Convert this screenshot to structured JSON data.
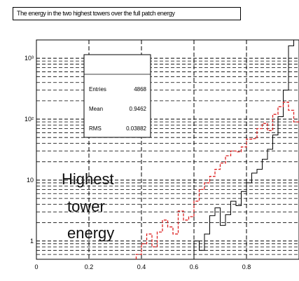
{
  "chart_data": {
    "type": "histogram",
    "title": "The energy in the two highest towers over the full patch energy",
    "xlabel": "",
    "ylabel": "",
    "xlim": [
      0,
      1.0
    ],
    "ylim": [
      0.5,
      2000
    ],
    "y_scale": "log",
    "grid": true,
    "x_ticks": [
      {
        "value": 0,
        "label": "0"
      },
      {
        "value": 0.2,
        "label": "0.2"
      },
      {
        "value": 0.4,
        "label": "0.4"
      },
      {
        "value": 0.6,
        "label": "0.6"
      },
      {
        "value": 0.8,
        "label": "0.8"
      }
    ],
    "y_ticks": [
      {
        "value": 1,
        "label": "1"
      },
      {
        "value": 10,
        "label": "10"
      },
      {
        "value": 100,
        "label": "10²"
      },
      {
        "value": 1000,
        "label": "10³"
      }
    ],
    "stats": {
      "entries_label": "Entries",
      "entries": "4868",
      "mean_label": "Mean",
      "mean": "0.9462",
      "rms_label": "RMS",
      "rms": "0.03882"
    },
    "annotation_lines": [
      "Highest",
      "tower",
      "energy"
    ],
    "series": [
      {
        "color": "#000000",
        "style": "solid",
        "bin_edges": [
          0.6,
          0.62,
          0.64,
          0.66,
          0.68,
          0.7,
          0.72,
          0.74,
          0.76,
          0.78,
          0.8,
          0.82,
          0.84,
          0.86,
          0.88,
          0.9,
          0.92,
          0.94,
          0.96,
          0.98,
          1.0
        ],
        "values": [
          1,
          0.7,
          1.3,
          2.6,
          3.5,
          1.8,
          2.7,
          4.5,
          3.8,
          6.5,
          9,
          13,
          15,
          22,
          32,
          55,
          110,
          300,
          1600,
          2000
        ]
      },
      {
        "color": "#dd2222",
        "style": "dashed",
        "bin_edges": [
          0.38,
          0.4,
          0.42,
          0.44,
          0.46,
          0.48,
          0.5,
          0.52,
          0.54,
          0.56,
          0.58,
          0.6,
          0.62,
          0.64,
          0.66,
          0.68,
          0.7,
          0.72,
          0.74,
          0.76,
          0.78,
          0.8,
          0.82,
          0.84,
          0.86,
          0.88,
          0.9,
          0.92,
          0.94,
          0.96,
          0.98,
          1.0
        ],
        "values": [
          0.6,
          0.9,
          1.3,
          0.8,
          1.4,
          2.2,
          1.7,
          1.3,
          3.1,
          2.2,
          2.5,
          4.5,
          7,
          9,
          11.5,
          15,
          19,
          25,
          30,
          29,
          35,
          47,
          48,
          70,
          85,
          65,
          120,
          160,
          190,
          140,
          90
        ]
      }
    ]
  }
}
